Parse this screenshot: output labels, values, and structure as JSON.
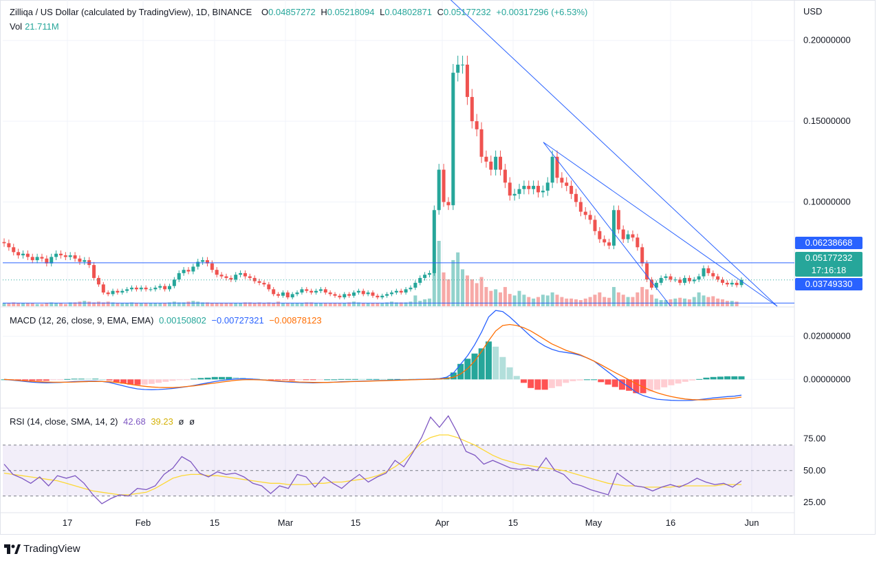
{
  "header": {
    "symbol": "Zilliqa / US Dollar (calculated by TradingView), 1D, BINANCE",
    "o_label": "O",
    "o_value": "0.04857272",
    "h_label": "H",
    "h_value": "0.05218094",
    "l_label": "L",
    "l_value": "0.04802871",
    "c_label": "C",
    "c_value": "0.05177232",
    "change": "+0.00317296 (+6.53%)",
    "vol_label": "Vol",
    "vol_value": "21.711M"
  },
  "macd": {
    "label": "MACD (12, 26, close, 9, EMA, EMA)",
    "hist": "0.00150802",
    "macd": "−0.00727321",
    "signal": "−0.00878123"
  },
  "rsi": {
    "label": "RSI (14, close, SMA, 14, 2)",
    "rsi": "42.68",
    "sma": "39.23",
    "x1": "ø",
    "x2": "ø"
  },
  "price_axis": {
    "currency": "USD"
  },
  "price_labels": {
    "upper": "0.06238668",
    "current": "0.05177232",
    "countdown": "17:16:18",
    "lower": "0.03749330"
  },
  "branding": {
    "logo_text": "TradingView"
  },
  "colors": {
    "up": "#26a69a",
    "down": "#ef5350",
    "line": "#2962ff",
    "signal": "#ff6d00",
    "rsi": "#7e57c2",
    "rsi_sma": "#fdd835",
    "current": "#26a69a",
    "level": "#2962ff"
  },
  "chart_data": [
    {
      "type": "candlestick",
      "title": "Zilliqa / US Dollar (calculated by TradingView), 1D, BINANCE",
      "x_ticks": [
        "17",
        "Feb",
        "15",
        "Mar",
        "15",
        "Apr",
        "15",
        "May",
        "16",
        "Jun"
      ],
      "y_ticks": [
        "0.20000000",
        "0.15000000",
        "0.10000000"
      ],
      "y_range": [
        0.0355,
        0.225
      ],
      "horizontal_levels": [
        0.06238668,
        0.0374933
      ],
      "current_price": 0.05177232,
      "closes": [
        0.0745,
        0.072,
        0.069,
        0.067,
        0.068,
        0.066,
        0.064,
        0.066,
        0.065,
        0.062,
        0.066,
        0.068,
        0.067,
        0.066,
        0.067,
        0.065,
        0.063,
        0.064,
        0.061,
        0.053,
        0.049,
        0.044,
        0.043,
        0.045,
        0.044,
        0.045,
        0.046,
        0.047,
        0.046,
        0.047,
        0.046,
        0.046,
        0.047,
        0.048,
        0.046,
        0.048,
        0.052,
        0.056,
        0.058,
        0.057,
        0.06,
        0.063,
        0.064,
        0.062,
        0.058,
        0.055,
        0.054,
        0.053,
        0.052,
        0.055,
        0.056,
        0.054,
        0.053,
        0.051,
        0.05,
        0.049,
        0.046,
        0.043,
        0.042,
        0.044,
        0.041,
        0.043,
        0.044,
        0.046,
        0.045,
        0.044,
        0.045,
        0.046,
        0.044,
        0.043,
        0.042,
        0.041,
        0.043,
        0.042,
        0.044,
        0.045,
        0.043,
        0.044,
        0.042,
        0.041,
        0.042,
        0.043,
        0.044,
        0.045,
        0.044,
        0.046,
        0.047,
        0.05,
        0.053,
        0.055,
        0.056,
        0.095,
        0.12,
        0.1,
        0.098,
        0.18,
        0.185,
        0.185,
        0.165,
        0.15,
        0.145,
        0.128,
        0.125,
        0.12,
        0.128,
        0.12,
        0.112,
        0.104,
        0.105,
        0.108,
        0.11,
        0.108,
        0.11,
        0.106,
        0.107,
        0.112,
        0.128,
        0.115,
        0.112,
        0.11,
        0.105,
        0.1,
        0.094,
        0.092,
        0.089,
        0.082,
        0.077,
        0.075,
        0.073,
        0.095,
        0.083,
        0.077,
        0.08,
        0.078,
        0.072,
        0.062,
        0.052,
        0.047,
        0.05,
        0.053,
        0.054,
        0.052,
        0.052,
        0.05,
        0.053,
        0.051,
        0.052,
        0.054,
        0.059,
        0.056,
        0.054,
        0.052,
        0.05,
        0.049,
        0.05,
        0.0486,
        0.0518
      ],
      "volumes": [
        4,
        4,
        5,
        4,
        4,
        4,
        4,
        3,
        3,
        4,
        5,
        4,
        4,
        3,
        5,
        5,
        6,
        7,
        6,
        5,
        6,
        5,
        6,
        5,
        4,
        4,
        4,
        5,
        4,
        4,
        4,
        4,
        4,
        4,
        4,
        5,
        6,
        5,
        5,
        6,
        7,
        6,
        5,
        5,
        4,
        4,
        4,
        4,
        4,
        4,
        4,
        5,
        5,
        4,
        5,
        4,
        5,
        4,
        6,
        4,
        4,
        4,
        4,
        4,
        5,
        5,
        4,
        4,
        4,
        4,
        4,
        4,
        4,
        5,
        6,
        5,
        4,
        4,
        4,
        4,
        4,
        5,
        6,
        5,
        5,
        5,
        6,
        14,
        7,
        9,
        10,
        50,
        85,
        44,
        35,
        60,
        70,
        48,
        40,
        35,
        30,
        38,
        25,
        20,
        22,
        18,
        25,
        16,
        14,
        20,
        15,
        12,
        10,
        12,
        15,
        14,
        18,
        15,
        12,
        10,
        10,
        9,
        8,
        10,
        12,
        15,
        18,
        12,
        11,
        25,
        18,
        15,
        12,
        12,
        18,
        25,
        22,
        15,
        10,
        8,
        8,
        9,
        10,
        11,
        10,
        9,
        12,
        18,
        14,
        12,
        13,
        10,
        9,
        7,
        7,
        6
      ],
      "trendlines": [
        {
          "from": "peak",
          "to": "lower-right",
          "values": [
            0.23,
            0.0374933
          ]
        },
        {
          "from": "0.1370",
          "to": "0.0355",
          "values": [
            0.137,
            0.0355
          ]
        }
      ]
    },
    {
      "type": "line",
      "title": "MACD (12, 26, close, 9, EMA, EMA)",
      "y_ticks": [
        "0.02000000",
        "0.00000000"
      ],
      "y_range": [
        -0.013,
        0.033
      ],
      "series": [
        {
          "name": "MACD",
          "values": [
            0.0,
            -0.0003,
            -0.0006,
            -0.001,
            -0.0013,
            -0.0015,
            -0.0016,
            -0.0015,
            -0.0014,
            -0.0012,
            -0.001,
            -0.0009,
            -0.0008,
            -0.0008,
            -0.001,
            -0.0014,
            -0.0022,
            -0.003,
            -0.0038,
            -0.0044,
            -0.0047,
            -0.0048,
            -0.0047,
            -0.0045,
            -0.0042,
            -0.0038,
            -0.0034,
            -0.0028,
            -0.0022,
            -0.0016,
            -0.001,
            -0.0005,
            -0.0001,
            0.0002,
            0.0003,
            0.0002,
            0.0,
            -0.0003,
            -0.0006,
            -0.0009,
            -0.0011,
            -0.0013,
            -0.0014,
            -0.0015,
            -0.0016,
            -0.0015,
            -0.0014,
            -0.0013,
            -0.0011,
            -0.001,
            -0.0009,
            -0.0008,
            -0.0007,
            -0.0006,
            -0.0005,
            -0.0004,
            -0.0003,
            -0.0002,
            -0.0001,
            0.0,
            0.0001,
            0.0002,
            0.0004,
            0.001,
            0.003,
            0.007,
            0.011,
            0.016,
            0.022,
            0.029,
            0.032,
            0.0315,
            0.029,
            0.026,
            0.023,
            0.02,
            0.0175,
            0.0155,
            0.014,
            0.013,
            0.0125,
            0.012,
            0.0112,
            0.01,
            0.0085,
            0.006,
            0.0035,
            0.001,
            -0.0015,
            -0.0035,
            -0.006,
            -0.0075,
            -0.0085,
            -0.0092,
            -0.0095,
            -0.0097,
            -0.0098,
            -0.0098,
            -0.0097,
            -0.0094,
            -0.009,
            -0.0086,
            -0.0083,
            -0.008,
            -0.0078,
            -0.0073
          ]
        },
        {
          "name": "Signal",
          "values": [
            0.0,
            -0.0002,
            -0.0004,
            -0.0007,
            -0.0009,
            -0.0011,
            -0.0012,
            -0.0013,
            -0.0013,
            -0.0013,
            -0.0012,
            -0.0011,
            -0.001,
            -0.001,
            -0.001,
            -0.0011,
            -0.0014,
            -0.0018,
            -0.0023,
            -0.0028,
            -0.0032,
            -0.0035,
            -0.0037,
            -0.0038,
            -0.0038,
            -0.0036,
            -0.0033,
            -0.003,
            -0.0026,
            -0.0021,
            -0.0017,
            -0.0012,
            -0.0008,
            -0.0004,
            -0.0002,
            -0.0001,
            -0.0002,
            -0.0003,
            -0.0005,
            -0.0007,
            -0.0009,
            -0.001,
            -0.0012,
            -0.0013,
            -0.0014,
            -0.0014,
            -0.0014,
            -0.0013,
            -0.0012,
            -0.0011,
            -0.001,
            -0.0009,
            -0.0008,
            -0.0007,
            -0.0006,
            -0.0005,
            -0.0004,
            -0.0003,
            -0.0002,
            -0.0001,
            0.0,
            0.0001,
            0.0002,
            0.0004,
            0.001,
            0.0025,
            0.005,
            0.0085,
            0.013,
            0.018,
            0.0225,
            0.025,
            0.0255,
            0.025,
            0.024,
            0.0225,
            0.0205,
            0.0185,
            0.0165,
            0.015,
            0.0135,
            0.0125,
            0.0115,
            0.01,
            0.0085,
            0.0068,
            0.005,
            0.0032,
            0.0015,
            -0.0002,
            -0.002,
            -0.0035,
            -0.005,
            -0.0062,
            -0.0072,
            -0.008,
            -0.0086,
            -0.0091,
            -0.0094,
            -0.0095,
            -0.0095,
            -0.0093,
            -0.0091,
            -0.0089,
            -0.0087,
            -0.0082
          ]
        }
      ]
    },
    {
      "type": "line",
      "title": "RSI (14, close, SMA, 14, 2)",
      "y_ticks": [
        "75.00",
        "50.00",
        "25.00"
      ],
      "y_range": [
        18,
        98
      ],
      "bands": [
        70,
        50,
        30
      ],
      "series": [
        {
          "name": "RSI",
          "values": [
            55,
            47,
            44,
            40,
            45,
            38,
            46,
            44,
            46,
            40,
            31,
            24,
            28,
            31,
            30,
            36,
            35,
            38,
            47,
            52,
            61,
            57,
            48,
            45,
            49,
            47,
            48,
            45,
            40,
            38,
            32,
            38,
            36,
            47,
            45,
            37,
            45,
            40,
            36,
            42,
            47,
            41,
            45,
            48,
            58,
            53,
            64,
            76,
            92,
            84,
            93,
            80,
            65,
            62,
            55,
            58,
            55,
            52,
            51,
            52,
            50,
            60,
            50,
            47,
            40,
            38,
            35,
            33,
            31,
            48,
            43,
            38,
            37,
            34,
            37,
            39,
            37,
            40,
            44,
            41,
            39,
            40,
            37,
            42
          ]
        },
        {
          "name": "SMA",
          "values": [
            48,
            47,
            46,
            45,
            44,
            43,
            42,
            40,
            38,
            36,
            34,
            33,
            32,
            31,
            31,
            32,
            33,
            36,
            40,
            44,
            46,
            47,
            47,
            46,
            46,
            45,
            44,
            43,
            42,
            41,
            40,
            40,
            39,
            39,
            39,
            40,
            40,
            41,
            41,
            42,
            43,
            44,
            46,
            49,
            53,
            58,
            65,
            72,
            76,
            78,
            78,
            76,
            73,
            70,
            66,
            62,
            59,
            57,
            55,
            54,
            53,
            52,
            51,
            50,
            48,
            46,
            44,
            42,
            40,
            39,
            38,
            38,
            37,
            37,
            37,
            37,
            38,
            38,
            38,
            38,
            38,
            39,
            39,
            39
          ]
        }
      ]
    }
  ]
}
